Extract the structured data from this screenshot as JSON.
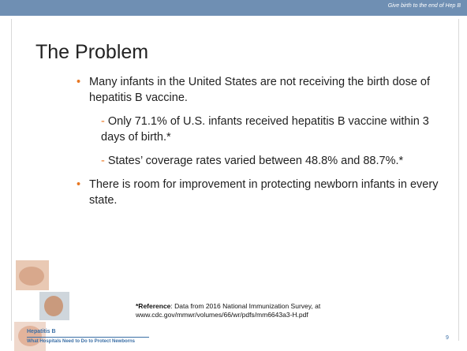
{
  "header": {
    "tagline": "Give birth to the end of Hep B"
  },
  "title": "The Problem",
  "bullets": [
    {
      "text": "Many infants in the United States are not receiving the birth dose of hepatitis B vaccine.",
      "sub": [
        "Only 71.1% of U.S. infants received hepatitis B vaccine within 3 days of birth.*",
        "States’ coverage rates varied between 48.8% and 88.7%.*"
      ]
    },
    {
      "text": "There is room for improvement in protecting newborn infants in every state.",
      "sub": []
    }
  ],
  "reference": {
    "label": "*Reference",
    "text": ": Data from 2016 National Immunization Survey, at",
    "url": "www.cdc.gov/mmwr/volumes/66/wr/pdfs/mm6643a3-H.pdf"
  },
  "footer": {
    "title": "Hepatitis B",
    "subtitle": "What Hospitals Need to Do to Protect Newborns"
  },
  "page_number": 9
}
